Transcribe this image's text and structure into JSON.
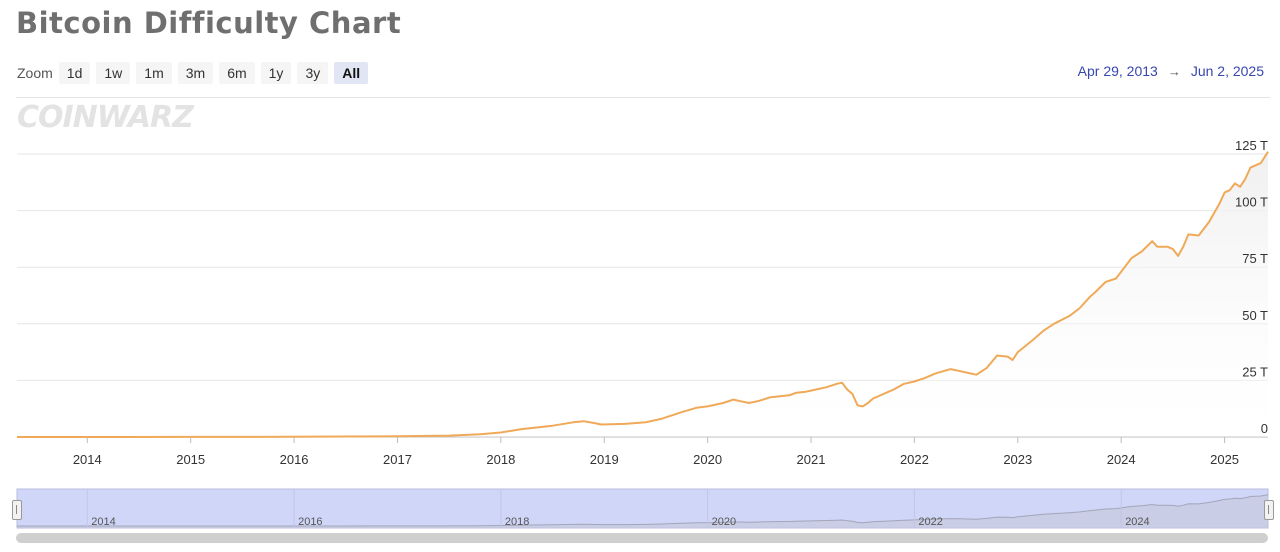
{
  "page": {
    "title": "Bitcoin Difficulty Chart",
    "logo": "COINWARZ"
  },
  "zoom": {
    "label": "Zoom",
    "buttons": [
      "1d",
      "1w",
      "1m",
      "3m",
      "6m",
      "1y",
      "3y",
      "All"
    ],
    "active": "All"
  },
  "range": {
    "from": "Apr 29, 2013",
    "arrow": "→",
    "to": "Jun 2, 2025"
  },
  "colors": {
    "line": "#f0a958",
    "navigator_fill": "#d0d6f8",
    "navigator_border": "#b8bde0"
  },
  "chart_data": {
    "type": "area",
    "title": "Bitcoin Difficulty Chart",
    "xlabel": "",
    "ylabel": "",
    "ylim": [
      0,
      125
    ],
    "y_ticks": [
      0,
      25,
      50,
      75,
      100,
      125
    ],
    "y_tick_labels": [
      "0",
      "25 T",
      "50 T",
      "75 T",
      "100 T",
      "125 T"
    ],
    "x_range": [
      2013.32,
      2025.42
    ],
    "x_ticks": [
      2014,
      2015,
      2016,
      2017,
      2018,
      2019,
      2020,
      2021,
      2022,
      2023,
      2024,
      2025
    ],
    "x_tick_labels": [
      "2014",
      "2015",
      "2016",
      "2017",
      "2018",
      "2019",
      "2020",
      "2021",
      "2022",
      "2023",
      "2024",
      "2025"
    ],
    "grid": true,
    "legend": "none",
    "series": [
      {
        "values_unit": "T",
        "x": [
          2013.32,
          2014.0,
          2015.0,
          2016.0,
          2016.5,
          2017.0,
          2017.5,
          2017.8,
          2018.0,
          2018.2,
          2018.5,
          2018.7,
          2018.8,
          2018.92,
          2018.97,
          2019.2,
          2019.4,
          2019.55,
          2019.75,
          2019.9,
          2020.0,
          2020.15,
          2020.25,
          2020.3,
          2020.4,
          2020.5,
          2020.6,
          2020.7,
          2020.8,
          2020.85,
          2020.95,
          2021.0,
          2021.15,
          2021.25,
          2021.3,
          2021.35,
          2021.4,
          2021.45,
          2021.5,
          2021.55,
          2021.6,
          2021.7,
          2021.8,
          2021.9,
          2022.0,
          2022.1,
          2022.2,
          2022.35,
          2022.45,
          2022.55,
          2022.6,
          2022.7,
          2022.8,
          2022.9,
          2022.95,
          2023.0,
          2023.15,
          2023.25,
          2023.35,
          2023.5,
          2023.6,
          2023.7,
          2023.75,
          2023.85,
          2023.95,
          2024.0,
          2024.1,
          2024.2,
          2024.3,
          2024.35,
          2024.45,
          2024.5,
          2024.55,
          2024.6,
          2024.65,
          2024.75,
          2024.85,
          2024.95,
          2025.0,
          2025.05,
          2025.1,
          2025.15,
          2025.2,
          2025.25,
          2025.3,
          2025.35,
          2025.42
        ],
        "values": [
          0.01,
          0.0,
          0.05,
          0.1,
          0.2,
          0.3,
          0.6,
          1.2,
          2.0,
          3.5,
          5.0,
          6.5,
          7.0,
          6.0,
          5.5,
          5.8,
          6.5,
          8.0,
          11.0,
          13.0,
          13.5,
          15.0,
          16.5,
          16.0,
          15.0,
          16.0,
          17.5,
          18.0,
          18.5,
          19.5,
          20.0,
          20.5,
          22.0,
          23.5,
          24.0,
          21.0,
          19.0,
          14.0,
          13.5,
          15.0,
          17.0,
          19.0,
          21.0,
          23.5,
          24.5,
          26.0,
          28.0,
          30.0,
          29.0,
          28.0,
          27.5,
          30.5,
          36.0,
          35.5,
          34.0,
          37.5,
          43.0,
          47.0,
          50.0,
          53.5,
          57.0,
          62.0,
          64.0,
          68.5,
          70.0,
          73.0,
          79.0,
          82.0,
          86.5,
          84.0,
          84.0,
          83.0,
          80.0,
          84.0,
          89.5,
          89.0,
          95.0,
          103.0,
          108.0,
          109.0,
          112.0,
          110.5,
          114.0,
          119.0,
          120.0,
          121.0,
          126.0
        ]
      }
    ]
  },
  "navigator": {
    "labels": [
      "2014",
      "2016",
      "2018",
      "2020",
      "2022",
      "2024"
    ],
    "label_x": [
      2014,
      2016,
      2018,
      2020,
      2022,
      2024
    ]
  }
}
